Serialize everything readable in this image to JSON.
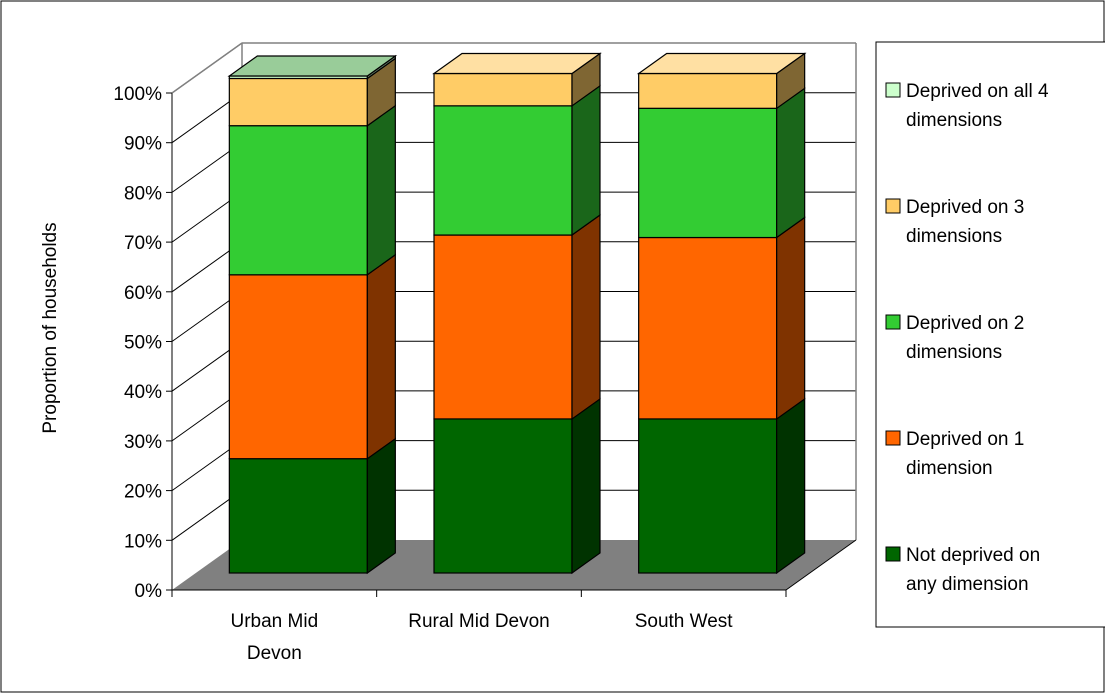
{
  "chart_data": {
    "type": "bar",
    "stacked": true,
    "three_d": true,
    "categories": [
      "Urban Mid Devon",
      "Rural Mid Devon",
      "South West"
    ],
    "category_lines": [
      [
        "Urban Mid",
        "Devon"
      ],
      [
        "Rural Mid Devon"
      ],
      [
        "South West"
      ]
    ],
    "ylabel": "Proportion of households",
    "xlabel": "",
    "ylim": [
      0,
      100
    ],
    "yticks": [
      "0%",
      "10%",
      "20%",
      "30%",
      "40%",
      "50%",
      "60%",
      "70%",
      "80%",
      "90%",
      "100%"
    ],
    "grid": true,
    "legend_position": "right",
    "series": [
      {
        "name": "Not deprived on any dimension",
        "legend_lines": [
          "Not deprived on",
          "any dimension"
        ],
        "color": "#006600",
        "side": "#003300",
        "top": "#4d944d",
        "values": [
          23,
          31,
          31
        ]
      },
      {
        "name": "Deprived on 1 dimension",
        "legend_lines": [
          "Deprived on 1",
          "dimension"
        ],
        "color": "#ff6600",
        "side": "#7f3300",
        "top": "#ff9966",
        "values": [
          37,
          37,
          36.5
        ]
      },
      {
        "name": "Deprived on 2 dimensions",
        "legend_lines": [
          "Deprived on 2",
          "dimensions"
        ],
        "color": "#33cc33",
        "side": "#1a661a",
        "top": "#85e085",
        "values": [
          30,
          26,
          26
        ]
      },
      {
        "name": "Deprived on 3 dimensions",
        "legend_lines": [
          "Deprived on 3",
          "dimensions"
        ],
        "color": "#ffcc66",
        "side": "#7f6633",
        "top": "#ffe0a3",
        "values": [
          9.5,
          6.5,
          7
        ]
      },
      {
        "name": "Deprived on all 4 dimensions",
        "legend_lines": [
          "Deprived on all 4",
          "dimensions"
        ],
        "color": "#ccffcc",
        "side": "#667f66",
        "top": "#99cc99",
        "values": [
          0.5,
          0,
          0
        ]
      }
    ]
  }
}
